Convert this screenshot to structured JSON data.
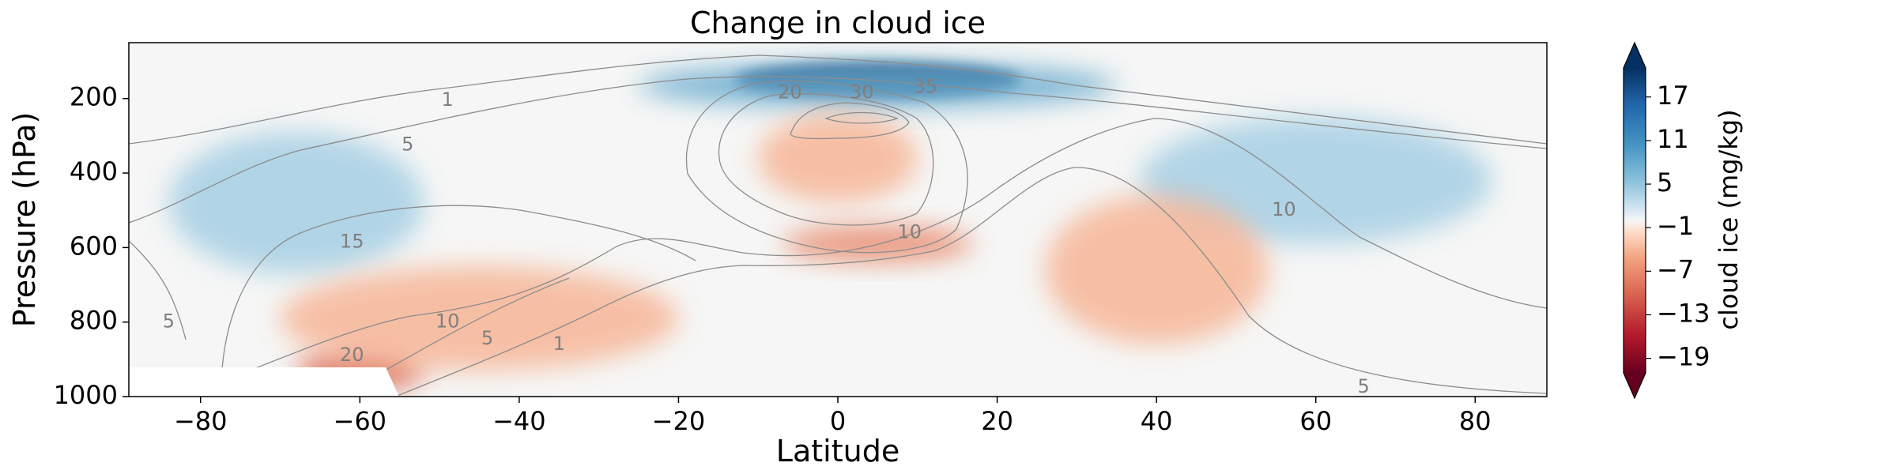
{
  "chart_data": {
    "type": "contourf",
    "title": "Change in cloud ice",
    "xlabel": "Latitude",
    "ylabel": "Pressure (hPa)",
    "xlim": [
      -89,
      89
    ],
    "ylim": [
      1000,
      50
    ],
    "y_inverted": true,
    "x_ticks": [
      "−80",
      "−60",
      "−40",
      "−20",
      "0",
      "20",
      "40",
      "60",
      "80"
    ],
    "x_tick_values": [
      -80,
      -60,
      -40,
      -20,
      0,
      20,
      40,
      60,
      80
    ],
    "y_ticks": [
      "200",
      "400",
      "600",
      "800",
      "1000"
    ],
    "y_tick_values": [
      200,
      400,
      600,
      800,
      1000
    ],
    "colorbar": {
      "label": "cloud ice (mg/kg)",
      "colormap": "RdBu",
      "vmin": -21,
      "vmax": 21,
      "extend": "both",
      "ticks": [
        "−19",
        "−13",
        "−7",
        "−1",
        "5",
        "11",
        "17"
      ],
      "tick_values": [
        -19,
        -13,
        -7,
        -1,
        5,
        11,
        17
      ]
    },
    "filled_regions": [
      {
        "name": "upper-tropical-maximum",
        "lat_center": 5,
        "pressure_center": 150,
        "lat_halfwidth": 18,
        "pressure_halfwidth": 45,
        "value": 20
      },
      {
        "name": "upper-tropical-band",
        "lat_center": 5,
        "pressure_center": 165,
        "lat_halfwidth": 30,
        "pressure_halfwidth": 60,
        "value": 8
      },
      {
        "name": "nh-midlatitude-band",
        "lat_center": 60,
        "pressure_center": 420,
        "lat_halfwidth": 22,
        "pressure_halfwidth": 170,
        "value": 4
      },
      {
        "name": "sh-midlatitude-band",
        "lat_center": -68,
        "pressure_center": 480,
        "lat_halfwidth": 16,
        "pressure_halfwidth": 190,
        "value": 4
      },
      {
        "name": "tropical-upper-decrease",
        "lat_center": 0,
        "pressure_center": 360,
        "lat_halfwidth": 10,
        "pressure_halfwidth": 120,
        "value": -4
      },
      {
        "name": "tropical-mid-decrease",
        "lat_center": 5,
        "pressure_center": 590,
        "lat_halfwidth": 12,
        "pressure_halfwidth": 50,
        "value": -7
      },
      {
        "name": "sh-low-decrease",
        "lat_center": -60,
        "pressure_center": 930,
        "lat_halfwidth": 8,
        "pressure_halfwidth": 60,
        "value": -9
      },
      {
        "name": "sh-low-band",
        "lat_center": -45,
        "pressure_center": 790,
        "lat_halfwidth": 25,
        "pressure_halfwidth": 140,
        "value": -4
      },
      {
        "name": "nh-mid-decrease",
        "lat_center": 40,
        "pressure_center": 660,
        "lat_halfwidth": 14,
        "pressure_halfwidth": 200,
        "value": -4
      }
    ],
    "contour_lines": {
      "color": "#808080",
      "levels": [
        1,
        5,
        10,
        15,
        20,
        30,
        35
      ],
      "labels": [
        {
          "text": "1",
          "lat": -49,
          "pressure": 205
        },
        {
          "text": "5",
          "lat": -54,
          "pressure": 325
        },
        {
          "text": "15",
          "lat": -61,
          "pressure": 585
        },
        {
          "text": "5",
          "lat": -84,
          "pressure": 800
        },
        {
          "text": "20",
          "lat": -61,
          "pressure": 890
        },
        {
          "text": "10",
          "lat": -49,
          "pressure": 800
        },
        {
          "text": "5",
          "lat": -44,
          "pressure": 845
        },
        {
          "text": "1",
          "lat": -35,
          "pressure": 860
        },
        {
          "text": "20",
          "lat": -6,
          "pressure": 185
        },
        {
          "text": "30",
          "lat": 3,
          "pressure": 185
        },
        {
          "text": "35",
          "lat": 11,
          "pressure": 170
        },
        {
          "text": "10",
          "lat": 9,
          "pressure": 560
        },
        {
          "text": "10",
          "lat": 56,
          "pressure": 500
        },
        {
          "text": "5",
          "lat": 66,
          "pressure": 975
        }
      ]
    }
  }
}
